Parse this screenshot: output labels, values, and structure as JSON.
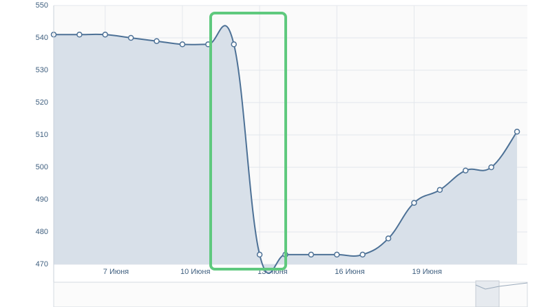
{
  "chart_data": {
    "type": "area",
    "x": [
      5,
      6,
      7,
      8,
      9,
      10,
      11,
      12,
      13,
      14,
      15,
      16,
      17,
      18,
      19,
      20,
      21,
      22,
      23
    ],
    "series": [
      {
        "color": "#4d7196",
        "values": [
          541,
          541,
          541,
          540,
          539,
          538,
          538,
          538,
          473,
          473,
          473,
          473,
          473,
          478,
          489,
          493,
          499,
          500,
          511
        ]
      }
    ],
    "xlim": [
      5,
      23.4
    ],
    "xticks": [
      {
        "value": 7,
        "label": "7 Июня"
      },
      {
        "value": 10,
        "label": "10 Июня"
      },
      {
        "value": 13,
        "label": "13 Июня"
      },
      {
        "value": 16,
        "label": "16 Июня"
      },
      {
        "value": 19,
        "label": "19 Июня"
      }
    ],
    "ylim": [
      470,
      550
    ],
    "yticks": [
      470,
      480,
      490,
      500,
      510,
      520,
      530,
      540,
      550
    ],
    "grid": true
  }
}
